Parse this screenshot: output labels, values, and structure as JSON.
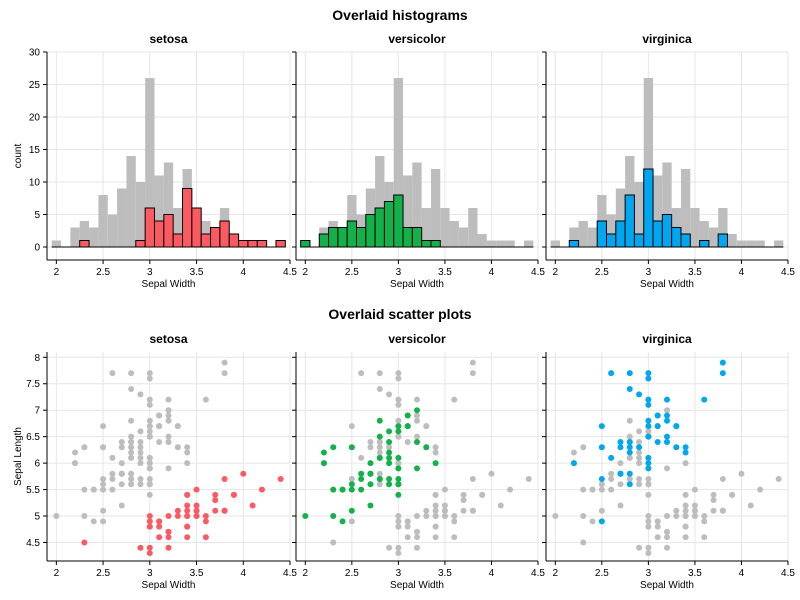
{
  "titles": {
    "top": "Overlaid histograms",
    "bottom": "Overlaid scatter plots"
  },
  "colors": {
    "background_gray": "#bdbdbd",
    "setosa": "#fc5a62",
    "versicolor": "#14b14a",
    "virginica": "#00a6f0"
  },
  "chart_data": [
    {
      "type": "bar",
      "kind": "overlaid_histogram",
      "xlabel": "Sepal Width",
      "ylabel": "count",
      "xlim": [
        1.9,
        4.5
      ],
      "ylim": [
        -2,
        30
      ],
      "xticks": [
        "2",
        "2.5",
        "3",
        "3.5",
        "4",
        "4.5"
      ],
      "yticks": [
        "0",
        "5",
        "10",
        "15",
        "20",
        "25",
        "30"
      ],
      "bin_width": 0.1,
      "background": {
        "name": "all",
        "bins": [
          2.0,
          2.1,
          2.2,
          2.3,
          2.4,
          2.5,
          2.6,
          2.7,
          2.8,
          2.9,
          3.0,
          3.1,
          3.2,
          3.3,
          3.4,
          3.5,
          3.6,
          3.7,
          3.8,
          3.9,
          4.0,
          4.1,
          4.2,
          4.3,
          4.4
        ],
        "counts": [
          1,
          0,
          3,
          4,
          3,
          8,
          5,
          9,
          14,
          10,
          26,
          11,
          13,
          6,
          12,
          6,
          4,
          3,
          6,
          2,
          1,
          1,
          1,
          0,
          1
        ]
      },
      "series": [
        {
          "name": "setosa",
          "title": "setosa",
          "bins": [
            2.3,
            2.9,
            3.0,
            3.1,
            3.2,
            3.3,
            3.4,
            3.5,
            3.6,
            3.7,
            3.8,
            3.9,
            4.0,
            4.1,
            4.2,
            4.4
          ],
          "counts": [
            1,
            1,
            6,
            4,
            5,
            2,
            9,
            6,
            2,
            3,
            4,
            2,
            1,
            1,
            1,
            1
          ]
        },
        {
          "name": "versicolor",
          "title": "versicolor",
          "bins": [
            2.0,
            2.2,
            2.3,
            2.4,
            2.5,
            2.6,
            2.7,
            2.8,
            2.9,
            3.0,
            3.1,
            3.2,
            3.3,
            3.4
          ],
          "counts": [
            1,
            2,
            3,
            3,
            4,
            3,
            5,
            6,
            7,
            8,
            3,
            3,
            1,
            1
          ]
        },
        {
          "name": "virginica",
          "title": "virginica",
          "bins": [
            2.2,
            2.5,
            2.6,
            2.7,
            2.8,
            2.9,
            3.0,
            3.1,
            3.2,
            3.3,
            3.4,
            3.6,
            3.8
          ],
          "counts": [
            1,
            4,
            2,
            4,
            8,
            2,
            12,
            4,
            5,
            3,
            2,
            1,
            2
          ]
        }
      ]
    },
    {
      "type": "scatter",
      "kind": "overlaid_scatter",
      "xlabel": "Sepal Width",
      "ylabel": "Sepal Length",
      "xlim": [
        1.9,
        4.5
      ],
      "ylim": [
        4.15,
        8.1
      ],
      "xticks": [
        "2",
        "2.5",
        "3",
        "3.5",
        "4",
        "4.5"
      ],
      "yticks": [
        "4.5",
        "5",
        "5.5",
        "6",
        "6.5",
        "7",
        "7.5",
        "8"
      ],
      "series": [
        {
          "name": "setosa",
          "title": "setosa",
          "points": [
            [
              3.5,
              5.1
            ],
            [
              3.0,
              4.9
            ],
            [
              3.2,
              4.7
            ],
            [
              3.1,
              4.6
            ],
            [
              3.6,
              5.0
            ],
            [
              3.9,
              5.4
            ],
            [
              3.4,
              4.6
            ],
            [
              3.4,
              5.0
            ],
            [
              2.9,
              4.4
            ],
            [
              3.1,
              4.9
            ],
            [
              3.7,
              5.4
            ],
            [
              3.4,
              4.8
            ],
            [
              3.0,
              4.8
            ],
            [
              3.0,
              4.3
            ],
            [
              4.0,
              5.8
            ],
            [
              4.4,
              5.7
            ],
            [
              3.9,
              5.4
            ],
            [
              3.5,
              5.1
            ],
            [
              3.8,
              5.7
            ],
            [
              3.8,
              5.1
            ],
            [
              3.4,
              5.4
            ],
            [
              3.7,
              5.1
            ],
            [
              3.6,
              4.6
            ],
            [
              3.3,
              5.1
            ],
            [
              3.4,
              4.8
            ],
            [
              3.0,
              5.0
            ],
            [
              3.4,
              5.0
            ],
            [
              3.5,
              5.2
            ],
            [
              3.4,
              5.2
            ],
            [
              3.2,
              4.7
            ],
            [
              3.1,
              4.8
            ],
            [
              3.4,
              5.4
            ],
            [
              4.1,
              5.2
            ],
            [
              4.2,
              5.5
            ],
            [
              3.1,
              4.9
            ],
            [
              3.2,
              5.0
            ],
            [
              3.5,
              5.5
            ],
            [
              3.6,
              4.9
            ],
            [
              3.0,
              4.4
            ],
            [
              3.4,
              5.1
            ],
            [
              3.5,
              5.0
            ],
            [
              2.3,
              4.5
            ],
            [
              3.2,
              4.4
            ],
            [
              3.5,
              5.0
            ],
            [
              3.8,
              5.1
            ],
            [
              3.0,
              4.8
            ],
            [
              3.8,
              5.1
            ],
            [
              3.2,
              4.6
            ],
            [
              3.7,
              5.3
            ],
            [
              3.3,
              5.0
            ]
          ]
        },
        {
          "name": "versicolor",
          "title": "versicolor",
          "points": [
            [
              3.2,
              7.0
            ],
            [
              3.2,
              6.4
            ],
            [
              3.1,
              6.9
            ],
            [
              2.3,
              5.5
            ],
            [
              2.8,
              6.5
            ],
            [
              2.8,
              5.7
            ],
            [
              3.3,
              6.3
            ],
            [
              2.4,
              4.9
            ],
            [
              2.9,
              6.6
            ],
            [
              2.7,
              5.2
            ],
            [
              2.0,
              5.0
            ],
            [
              3.0,
              5.9
            ],
            [
              2.2,
              6.0
            ],
            [
              2.9,
              6.1
            ],
            [
              2.9,
              5.6
            ],
            [
              3.1,
              6.7
            ],
            [
              3.0,
              5.6
            ],
            [
              2.7,
              5.8
            ],
            [
              2.2,
              6.2
            ],
            [
              2.5,
              5.6
            ],
            [
              3.2,
              5.9
            ],
            [
              2.8,
              6.1
            ],
            [
              2.5,
              6.3
            ],
            [
              2.8,
              6.1
            ],
            [
              2.9,
              6.4
            ],
            [
              3.0,
              6.6
            ],
            [
              2.8,
              6.8
            ],
            [
              3.0,
              6.7
            ],
            [
              2.9,
              6.0
            ],
            [
              2.6,
              5.7
            ],
            [
              2.4,
              5.5
            ],
            [
              2.4,
              5.5
            ],
            [
              2.7,
              5.8
            ],
            [
              2.7,
              6.0
            ],
            [
              3.0,
              5.4
            ],
            [
              3.4,
              6.0
            ],
            [
              3.1,
              6.7
            ],
            [
              2.3,
              6.3
            ],
            [
              3.0,
              5.6
            ],
            [
              2.5,
              5.5
            ],
            [
              2.6,
              5.5
            ],
            [
              3.0,
              6.1
            ],
            [
              2.6,
              5.8
            ],
            [
              2.3,
              5.0
            ],
            [
              2.7,
              5.6
            ],
            [
              3.0,
              5.7
            ],
            [
              2.9,
              5.7
            ],
            [
              2.9,
              6.2
            ],
            [
              2.5,
              5.1
            ],
            [
              2.8,
              5.7
            ]
          ]
        },
        {
          "name": "virginica",
          "title": "virginica",
          "points": [
            [
              3.3,
              6.3
            ],
            [
              2.7,
              5.8
            ],
            [
              3.0,
              7.1
            ],
            [
              2.9,
              6.3
            ],
            [
              3.0,
              6.5
            ],
            [
              3.0,
              7.6
            ],
            [
              2.5,
              4.9
            ],
            [
              2.9,
              7.3
            ],
            [
              2.5,
              6.7
            ],
            [
              3.6,
              7.2
            ],
            [
              3.2,
              6.5
            ],
            [
              2.7,
              6.4
            ],
            [
              3.0,
              6.8
            ],
            [
              2.5,
              5.7
            ],
            [
              2.8,
              5.8
            ],
            [
              3.2,
              6.4
            ],
            [
              3.0,
              6.5
            ],
            [
              3.8,
              7.7
            ],
            [
              2.6,
              7.7
            ],
            [
              2.2,
              6.0
            ],
            [
              3.2,
              6.9
            ],
            [
              2.8,
              5.6
            ],
            [
              2.8,
              7.7
            ],
            [
              2.7,
              6.3
            ],
            [
              3.3,
              6.7
            ],
            [
              3.2,
              7.2
            ],
            [
              2.8,
              6.2
            ],
            [
              3.0,
              6.1
            ],
            [
              2.8,
              6.4
            ],
            [
              3.0,
              7.2
            ],
            [
              2.8,
              7.4
            ],
            [
              3.8,
              7.9
            ],
            [
              2.8,
              6.4
            ],
            [
              2.8,
              6.3
            ],
            [
              2.6,
              6.1
            ],
            [
              3.0,
              7.7
            ],
            [
              3.4,
              6.3
            ],
            [
              3.1,
              6.4
            ],
            [
              3.0,
              6.0
            ],
            [
              3.1,
              6.9
            ],
            [
              3.1,
              6.7
            ],
            [
              3.1,
              6.9
            ],
            [
              2.7,
              5.8
            ],
            [
              3.2,
              6.8
            ],
            [
              3.3,
              6.7
            ],
            [
              3.0,
              6.7
            ],
            [
              2.5,
              6.3
            ],
            [
              3.0,
              6.5
            ],
            [
              3.4,
              6.2
            ],
            [
              3.0,
              5.9
            ]
          ]
        }
      ]
    }
  ]
}
